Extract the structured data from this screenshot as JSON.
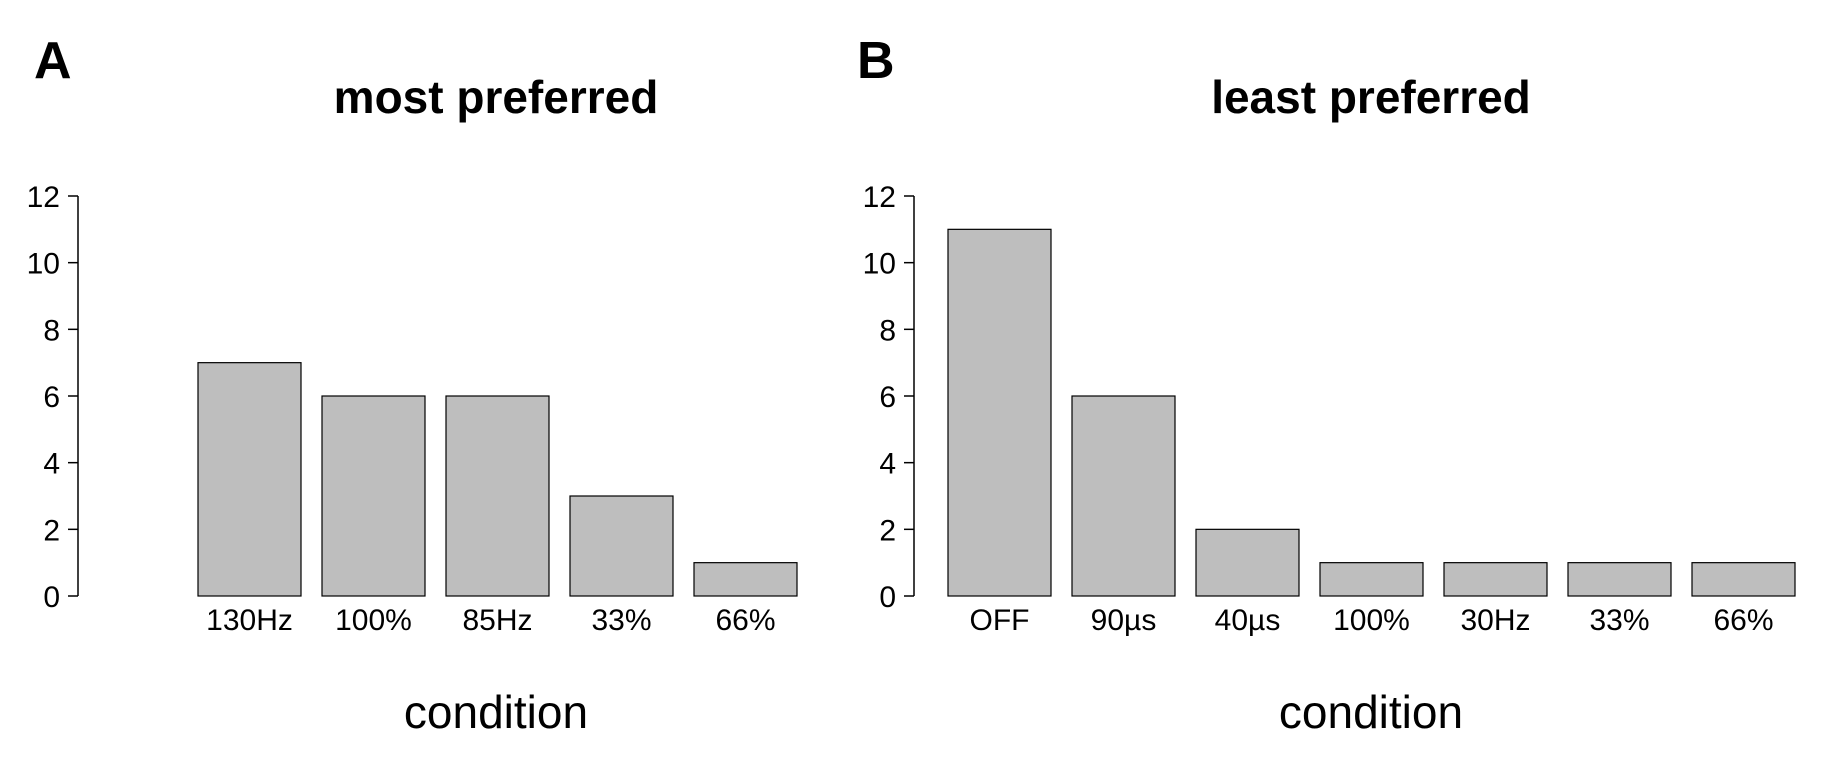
{
  "chart_data": [
    {
      "type": "bar",
      "panel_label": "A",
      "title": "most preferred",
      "xlabel": "condition",
      "ylabel": "",
      "categories": [
        "130Hz",
        "100%",
        "85Hz",
        "33%",
        "66%"
      ],
      "values": [
        7,
        6,
        6,
        3,
        1
      ],
      "ylim": [
        0,
        12
      ],
      "yticks": [
        "0",
        "2",
        "4",
        "6",
        "8",
        "10",
        "12"
      ],
      "bar_color": "#bebebe",
      "grid": false,
      "legend": "none"
    },
    {
      "type": "bar",
      "panel_label": "B",
      "title": "least preferred",
      "xlabel": "condition",
      "ylabel": "",
      "categories": [
        "OFF",
        "90µs",
        "40µs",
        "100%",
        "30Hz",
        "33%",
        "66%"
      ],
      "values": [
        11,
        6,
        2,
        1,
        1,
        1,
        1
      ],
      "ylim": [
        0,
        12
      ],
      "yticks": [
        "0",
        "2",
        "4",
        "6",
        "8",
        "10",
        "12"
      ],
      "bar_color": "#bebebe",
      "grid": false,
      "legend": "none"
    }
  ]
}
